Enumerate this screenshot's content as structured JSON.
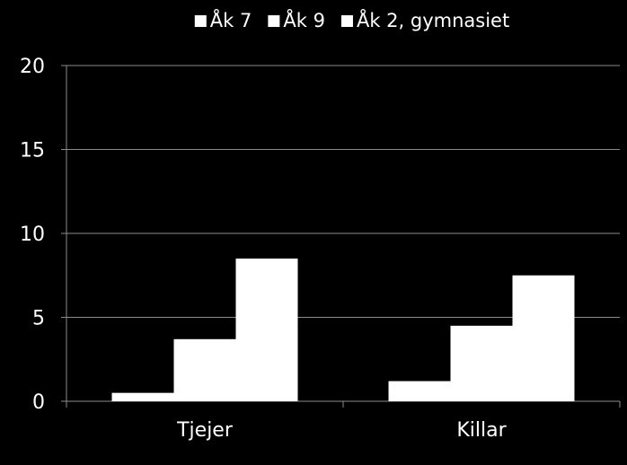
{
  "chart_data": {
    "type": "bar",
    "categories": [
      "Tjejer",
      "Killar"
    ],
    "series": [
      {
        "name": "Åk 7",
        "values": [
          0.5,
          1.2
        ]
      },
      {
        "name": "Åk 9",
        "values": [
          3.7,
          4.5
        ]
      },
      {
        "name": "Åk 2, gymnasiet",
        "values": [
          8.5,
          7.5
        ]
      }
    ],
    "ylim": [
      0,
      20
    ],
    "yticks": [
      "0",
      "5",
      "10",
      "15",
      "20"
    ],
    "grid": true,
    "legend_position": "top",
    "colors": {
      "background": "#000000",
      "bars": "#ffffff",
      "grid": "#8c8c8c"
    }
  }
}
